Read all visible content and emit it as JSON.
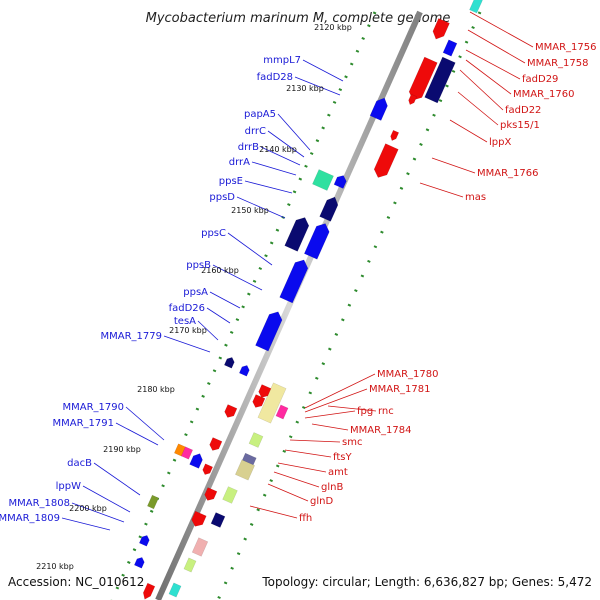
{
  "title": "Mycobacterium marinum M, complete genome",
  "accession": "Accession: NC_010612",
  "summary": "Topology: circular; Length: 6,636,827 bp; Genes: 5,472",
  "kbp_ticks": [
    {
      "label": "2120 kbp"
    },
    {
      "label": "2130 kbp"
    },
    {
      "label": "2140 kbp"
    },
    {
      "label": "2150 kbp"
    },
    {
      "label": "2160 kbp"
    },
    {
      "label": "2170 kbp"
    },
    {
      "label": "2180 kbp"
    },
    {
      "label": "2190 kbp"
    },
    {
      "label": "2200 kbp"
    },
    {
      "label": "2210 kbp"
    }
  ],
  "left_labels": [
    "mmpL7",
    "fadD28",
    "papA5",
    "drrC",
    "drrB",
    "drrA",
    "ppsE",
    "ppsD",
    "ppsC",
    "ppsB",
    "ppsA",
    "fadD26",
    "tesA",
    "MMAR_1779",
    "MMAR_1790",
    "MMAR_1791",
    "dacB",
    "lppW",
    "MMAR_1808",
    "MMAR_1809"
  ],
  "right_labels": [
    "MMAR_1756",
    "MMAR_1758",
    "fadD29",
    "MMAR_1760",
    "fadD22",
    "pks15/1",
    "lppX",
    "MMAR_1766",
    "mas",
    "MMAR_1780",
    "MMAR_1781",
    "fpg",
    "rnc",
    "MMAR_1784",
    "smc",
    "ftsY",
    "amt",
    "glnB",
    "glnD",
    "ffh"
  ],
  "colors": {
    "forward_gene": "#0a0aee",
    "forward_dark": "#0a0a70",
    "reverse_gene": "#ee0a0a",
    "left_label": "#1a1ad6",
    "right_label": "#d11414",
    "backbone": "#9a9a9a",
    "gc_dots": "#2e8b2e"
  }
}
